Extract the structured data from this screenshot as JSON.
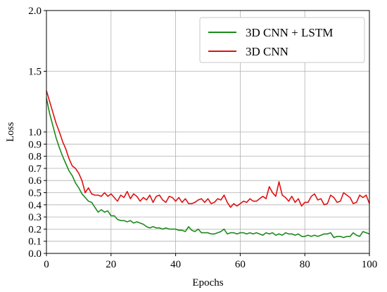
{
  "chart_data": {
    "type": "line",
    "title": "",
    "xlabel": "Epochs",
    "ylabel": "Loss",
    "xlim": [
      0,
      100
    ],
    "ylim": [
      0,
      2.0
    ],
    "xticks": [
      "0",
      "20",
      "40",
      "60",
      "80",
      "100"
    ],
    "yticks": [
      "0.0",
      "0.1",
      "0.2",
      "0.3",
      "0.4",
      "0.5",
      "0.6",
      "0.7",
      "0.8",
      "0.9",
      "1.0",
      "1.5",
      "2.0"
    ],
    "grid": true,
    "legend": "top-right",
    "x": [
      0,
      1,
      2,
      3,
      4,
      5,
      6,
      7,
      8,
      9,
      10,
      11,
      12,
      13,
      14,
      15,
      16,
      17,
      18,
      19,
      20,
      21,
      22,
      23,
      24,
      25,
      26,
      27,
      28,
      29,
      30,
      31,
      32,
      33,
      34,
      35,
      36,
      37,
      38,
      39,
      40,
      41,
      42,
      43,
      44,
      45,
      46,
      47,
      48,
      49,
      50,
      51,
      52,
      53,
      54,
      55,
      56,
      57,
      58,
      59,
      60,
      61,
      62,
      63,
      64,
      65,
      66,
      67,
      68,
      69,
      70,
      71,
      72,
      73,
      74,
      75,
      76,
      77,
      78,
      79,
      80,
      81,
      82,
      83,
      84,
      85,
      86,
      87,
      88,
      89,
      90,
      91,
      92,
      93,
      94,
      95,
      96,
      97,
      98,
      99,
      100
    ],
    "series": [
      {
        "name": "3D CNN + LSTM",
        "color": "#1a8a1a",
        "values": [
          1.28,
          1.15,
          1.05,
          0.95,
          0.87,
          0.8,
          0.74,
          0.68,
          0.64,
          0.58,
          0.54,
          0.49,
          0.46,
          0.43,
          0.42,
          0.38,
          0.34,
          0.36,
          0.34,
          0.35,
          0.31,
          0.31,
          0.28,
          0.27,
          0.27,
          0.26,
          0.27,
          0.25,
          0.26,
          0.25,
          0.24,
          0.22,
          0.21,
          0.22,
          0.21,
          0.21,
          0.2,
          0.21,
          0.2,
          0.2,
          0.2,
          0.19,
          0.19,
          0.18,
          0.22,
          0.19,
          0.18,
          0.2,
          0.17,
          0.17,
          0.17,
          0.16,
          0.16,
          0.17,
          0.18,
          0.2,
          0.16,
          0.17,
          0.17,
          0.16,
          0.17,
          0.17,
          0.16,
          0.17,
          0.16,
          0.17,
          0.16,
          0.15,
          0.17,
          0.16,
          0.17,
          0.15,
          0.16,
          0.15,
          0.17,
          0.16,
          0.16,
          0.15,
          0.16,
          0.14,
          0.14,
          0.15,
          0.14,
          0.15,
          0.14,
          0.15,
          0.16,
          0.16,
          0.17,
          0.13,
          0.14,
          0.14,
          0.13,
          0.14,
          0.14,
          0.17,
          0.15,
          0.14,
          0.18,
          0.17,
          0.16
        ]
      },
      {
        "name": "3D CNN",
        "color": "#e01010",
        "values": [
          1.34,
          1.25,
          1.16,
          1.07,
          1.0,
          0.92,
          0.86,
          0.78,
          0.72,
          0.7,
          0.66,
          0.6,
          0.5,
          0.54,
          0.49,
          0.48,
          0.48,
          0.47,
          0.5,
          0.47,
          0.49,
          0.46,
          0.43,
          0.48,
          0.46,
          0.51,
          0.45,
          0.49,
          0.47,
          0.43,
          0.46,
          0.44,
          0.48,
          0.42,
          0.47,
          0.48,
          0.44,
          0.42,
          0.47,
          0.46,
          0.43,
          0.46,
          0.42,
          0.45,
          0.41,
          0.41,
          0.42,
          0.44,
          0.45,
          0.42,
          0.45,
          0.41,
          0.42,
          0.45,
          0.44,
          0.48,
          0.42,
          0.38,
          0.41,
          0.39,
          0.41,
          0.43,
          0.42,
          0.45,
          0.43,
          0.43,
          0.45,
          0.47,
          0.45,
          0.55,
          0.5,
          0.47,
          0.59,
          0.48,
          0.46,
          0.43,
          0.47,
          0.42,
          0.45,
          0.39,
          0.42,
          0.42,
          0.47,
          0.49,
          0.44,
          0.45,
          0.4,
          0.41,
          0.48,
          0.46,
          0.42,
          0.43,
          0.5,
          0.48,
          0.46,
          0.41,
          0.42,
          0.48,
          0.46,
          0.48,
          0.41
        ]
      }
    ]
  }
}
